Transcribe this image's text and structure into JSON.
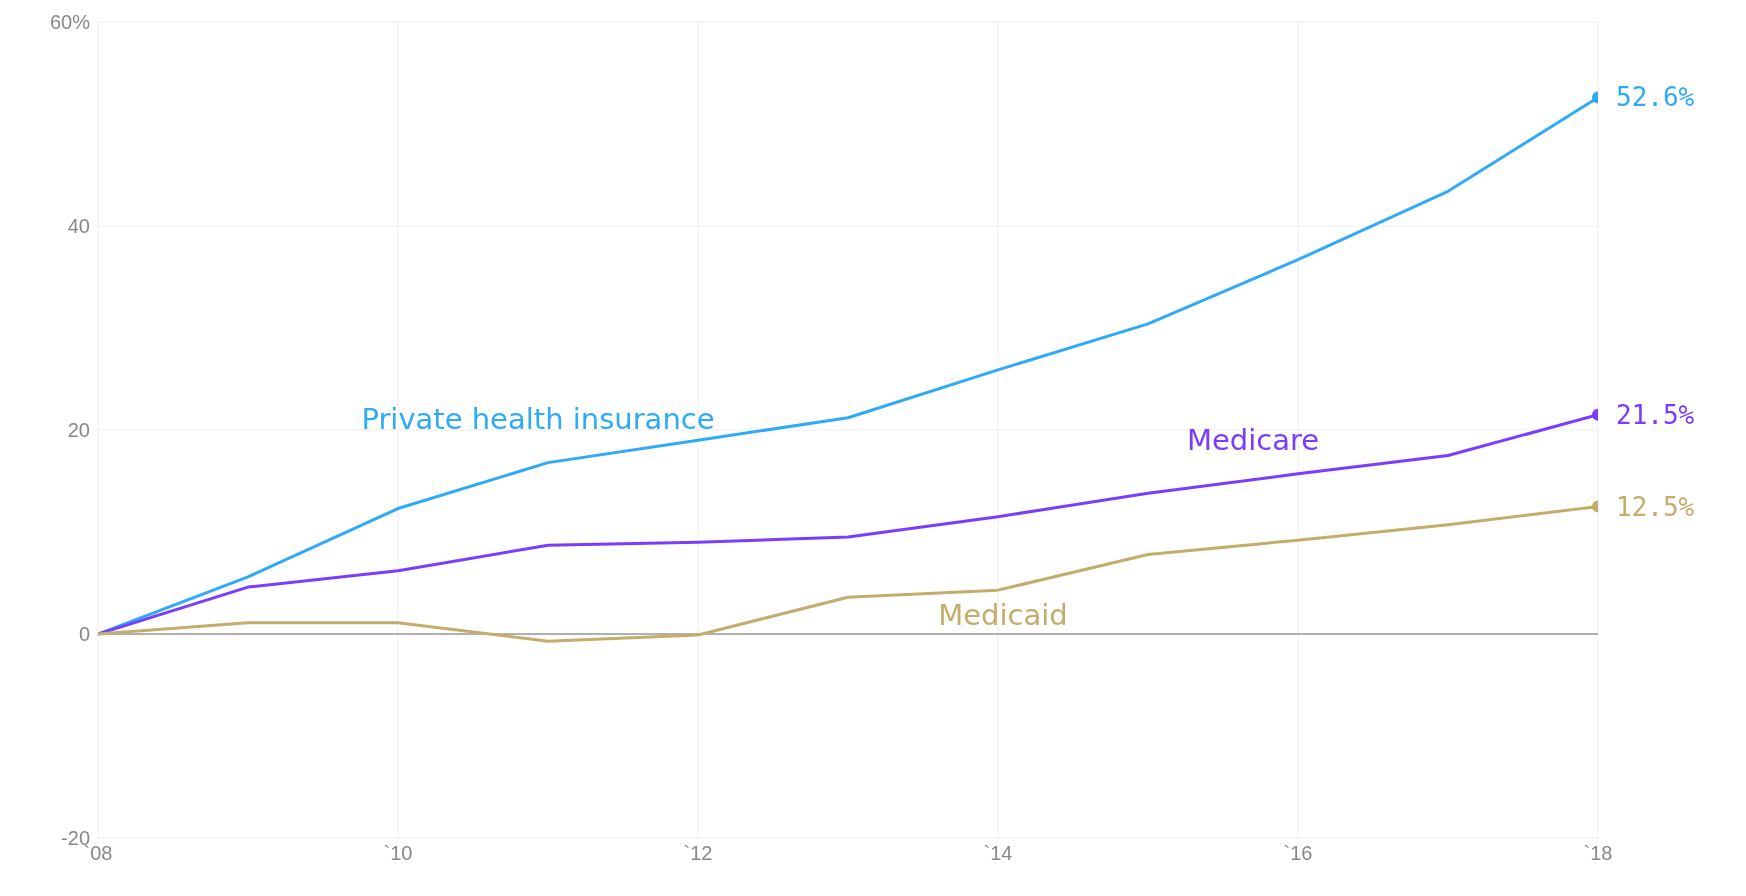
{
  "chart_data": {
    "type": "line",
    "categories": [
      "`08",
      null,
      "`10",
      null,
      "`12",
      null,
      "`14",
      null,
      "`16",
      null,
      "`18"
    ],
    "ylim": [
      -20,
      60
    ],
    "yticks": [
      -20,
      0,
      20,
      40,
      {
        "value": 60,
        "label": "60%"
      }
    ],
    "grid": true,
    "ref_lines": [
      {
        "axis": "y",
        "value": 0,
        "color": "#999999"
      }
    ],
    "series": [
      {
        "name": "Private health insurance",
        "color": "#2eaaf7",
        "values": [
          0,
          5.6,
          12.3,
          16.8,
          19.0,
          21.2,
          25.9,
          30.4,
          36.7,
          43.4,
          52.6
        ],
        "value_labels": [
          null,
          null,
          null,
          null,
          null,
          null,
          null,
          null,
          null,
          null,
          "52.6%"
        ]
      },
      {
        "name": "Medicare",
        "color": "#7b3cff",
        "values": [
          0,
          4.6,
          6.2,
          8.7,
          9.0,
          9.5,
          11.5,
          13.8,
          15.7,
          17.5,
          21.5
        ],
        "value_labels": [
          null,
          null,
          null,
          null,
          null,
          null,
          null,
          null,
          null,
          null,
          "21.5%"
        ]
      },
      {
        "name": "Medicaid",
        "color": "#c4ad6b",
        "values": [
          0,
          1.1,
          1.1,
          -0.7,
          -0.1,
          3.6,
          4.3,
          7.8,
          9.2,
          10.7,
          12.5
        ],
        "value_labels": [
          null,
          null,
          null,
          null,
          null,
          null,
          null,
          null,
          null,
          null,
          "12.5%"
        ]
      }
    ]
  }
}
